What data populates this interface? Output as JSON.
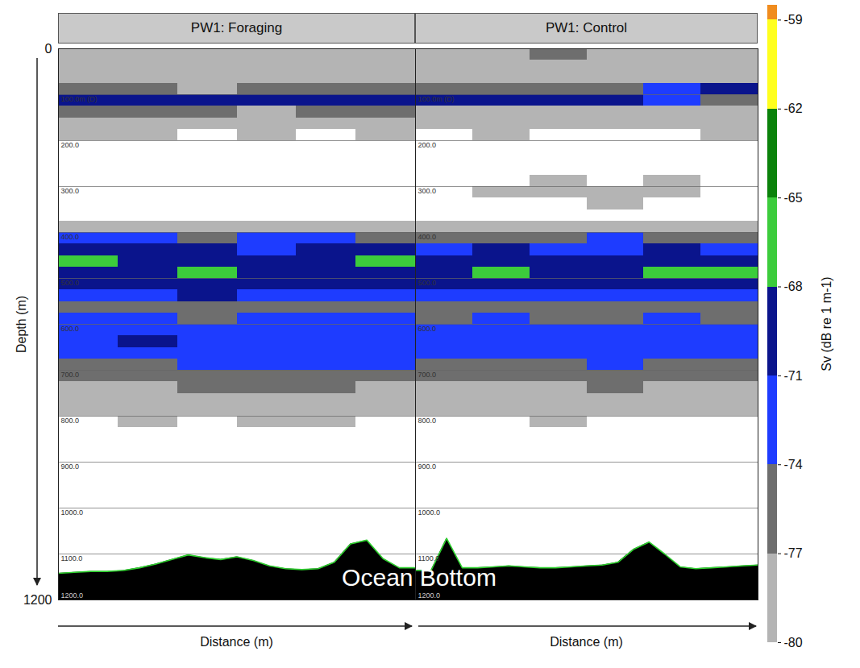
{
  "chart_data": {
    "type": "heatmap",
    "ylabel": "Depth (m)",
    "xlabel": "Distance (m)",
    "ylim": [
      0,
      1200
    ],
    "yticks": [
      0,
      1200
    ],
    "tick_labels": "y",
    "grid": true,
    "depth_lines": [
      {
        "value": 100,
        "label": "100.0m (D)"
      },
      {
        "value": 200,
        "label": "200.0"
      },
      {
        "value": 300,
        "label": "300.0"
      },
      {
        "value": 400,
        "label": "400.0"
      },
      {
        "value": 500,
        "label": "500.0"
      },
      {
        "value": 600,
        "label": "600.0"
      },
      {
        "value": 700,
        "label": "700.0"
      },
      {
        "value": 800,
        "label": "800.0"
      },
      {
        "value": 900,
        "label": "900.0"
      },
      {
        "value": 1000,
        "label": "1000.0"
      },
      {
        "value": 1100,
        "label": "1100.0"
      },
      {
        "value": 1200,
        "label": "1200.0"
      }
    ],
    "depth_bin_edges": [
      0,
      25,
      50,
      75,
      100,
      125,
      150,
      175,
      200,
      225,
      250,
      275,
      300,
      325,
      350,
      375,
      400,
      425,
      450,
      475,
      500,
      525,
      550,
      575,
      600,
      625,
      650,
      675,
      700,
      725,
      750,
      775,
      800,
      825,
      850,
      875,
      900,
      925,
      950,
      975,
      1000,
      1025,
      1050,
      1075,
      1100,
      1125,
      1150,
      1175,
      1200
    ],
    "panels": [
      {
        "title": "PW1: Foraging",
        "cells": [
          [
            -78,
            -78,
            -78,
            -78,
            -78,
            -78
          ],
          [
            -78,
            -79,
            -78,
            -78,
            -79,
            -78
          ],
          [
            -78,
            -78,
            -78,
            -78,
            -78,
            -78
          ],
          [
            -77,
            -77,
            -78,
            -77,
            -77,
            -77
          ],
          [
            -70,
            -70,
            -71,
            -70,
            -70,
            -71
          ],
          [
            -77,
            -77,
            -77,
            -78,
            -77,
            -77
          ],
          [
            -78,
            -78,
            -78,
            -78,
            -78,
            -79
          ],
          [
            -79,
            -79,
            null,
            -79,
            null,
            -79
          ],
          [
            null,
            null,
            null,
            null,
            null,
            null
          ],
          [
            null,
            null,
            null,
            null,
            null,
            null
          ],
          [
            null,
            null,
            null,
            null,
            null,
            null
          ],
          [
            null,
            null,
            null,
            null,
            null,
            null
          ],
          [
            null,
            null,
            null,
            null,
            null,
            null
          ],
          [
            null,
            null,
            null,
            null,
            null,
            null
          ],
          [
            null,
            null,
            null,
            null,
            null,
            null
          ],
          [
            -78,
            -78,
            -78,
            -78,
            -78,
            -78
          ],
          [
            -74,
            -74,
            -75,
            -74,
            -74,
            -75
          ],
          [
            -70,
            -71,
            -71,
            -72,
            -71,
            -70
          ],
          [
            -67,
            -69,
            -69,
            -70,
            -69,
            -67
          ],
          [
            -69,
            -69,
            -67,
            -69,
            -69,
            -70
          ],
          [
            -70,
            -70,
            -70,
            -69,
            -70,
            -71
          ],
          [
            -72,
            -72,
            -71,
            -72,
            -72,
            -72
          ],
          [
            -76,
            -75,
            -76,
            -75,
            -75,
            -76
          ],
          [
            -74,
            -74,
            -75,
            -74,
            -74,
            -74
          ],
          [
            -72,
            -72,
            -72,
            -73,
            -72,
            -72
          ],
          [
            -72,
            -71,
            -72,
            -72,
            -72,
            -72
          ],
          [
            -73,
            -73,
            -73,
            -73,
            -72,
            -73
          ],
          [
            -75,
            -75,
            -74,
            -74,
            -74,
            -74
          ],
          [
            -76,
            -77,
            -76,
            -76,
            -75,
            -76
          ],
          [
            -78,
            -78,
            -77,
            -77,
            -77,
            -78
          ],
          [
            -79,
            -79,
            -78,
            -78,
            -78,
            -79
          ],
          [
            -79,
            -79,
            -79,
            -79,
            -79,
            -79
          ],
          [
            null,
            -79,
            null,
            -79,
            -79,
            null
          ],
          [
            null,
            null,
            null,
            null,
            null,
            null
          ],
          [
            null,
            null,
            null,
            null,
            null,
            null
          ],
          [
            null,
            null,
            null,
            null,
            null,
            null
          ],
          [
            null,
            null,
            null,
            null,
            null,
            null
          ],
          [
            null,
            null,
            null,
            null,
            null,
            null
          ],
          [
            null,
            null,
            null,
            null,
            null,
            null
          ],
          [
            null,
            null,
            null,
            null,
            null,
            null
          ],
          [
            null,
            null,
            null,
            null,
            null,
            null
          ],
          [
            null,
            null,
            null,
            null,
            null,
            null
          ],
          [
            null,
            null,
            null,
            null,
            null,
            null
          ],
          [
            null,
            null,
            null,
            null,
            null,
            null
          ],
          [
            null,
            null,
            null,
            null,
            null,
            null
          ],
          [
            null,
            null,
            null,
            null,
            null,
            null
          ],
          [
            null,
            null,
            null,
            null,
            null,
            null
          ],
          [
            null,
            null,
            null,
            null,
            null,
            null
          ]
        ],
        "bottom_depth": [
          1142,
          1140,
          1138,
          1138,
          1136,
          1130,
          1122,
          1112,
          1102,
          1108,
          1112,
          1106,
          1114,
          1126,
          1132,
          1134,
          1132,
          1118,
          1078,
          1070,
          1110,
          1130,
          1130
        ]
      },
      {
        "title": "PW1: Control",
        "cells": [
          [
            -78,
            -78,
            -77,
            -78,
            -78,
            -78
          ],
          [
            -78,
            -78,
            -78,
            -78,
            -78,
            -78
          ],
          [
            -78,
            -79,
            -78,
            -78,
            -79,
            -78
          ],
          [
            -77,
            -77,
            -77,
            -76,
            -72,
            -71
          ],
          [
            -70,
            -70,
            -70,
            -71,
            -74,
            -75
          ],
          [
            -78,
            -78,
            -78,
            -78,
            -78,
            -78
          ],
          [
            -79,
            -79,
            -79,
            -79,
            -79,
            -79
          ],
          [
            null,
            -79,
            null,
            null,
            null,
            -79
          ],
          [
            null,
            null,
            null,
            null,
            null,
            null
          ],
          [
            null,
            null,
            null,
            null,
            null,
            null
          ],
          [
            null,
            null,
            null,
            null,
            null,
            null
          ],
          [
            null,
            null,
            -79,
            null,
            -79,
            null
          ],
          [
            null,
            -79,
            -79,
            -78,
            -79,
            null
          ],
          [
            null,
            null,
            null,
            -79,
            null,
            null
          ],
          [
            null,
            null,
            null,
            null,
            null,
            null
          ],
          [
            -78,
            -78,
            -78,
            -78,
            -78,
            -78
          ],
          [
            -75,
            -75,
            -75,
            -74,
            -75,
            -75
          ],
          [
            -72,
            -71,
            -72,
            -72,
            -71,
            -72
          ],
          [
            -70,
            -70,
            -71,
            -70,
            -71,
            -70
          ],
          [
            -69,
            -68,
            -70,
            -69,
            -68,
            -67
          ],
          [
            -70,
            -70,
            -70,
            -70,
            -69,
            -70
          ],
          [
            -73,
            -72,
            -73,
            -72,
            -73,
            -73
          ],
          [
            -76,
            -76,
            -76,
            -76,
            -75,
            -76
          ],
          [
            -75,
            -74,
            -75,
            -75,
            -74,
            -75
          ],
          [
            -73,
            -73,
            -73,
            -72,
            -72,
            -73
          ],
          [
            -72,
            -73,
            -72,
            -72,
            -72,
            -72
          ],
          [
            -73,
            -74,
            -73,
            -73,
            -73,
            -74
          ],
          [
            -75,
            -75,
            -75,
            -74,
            -75,
            -75
          ],
          [
            -77,
            -77,
            -76,
            -76,
            -76,
            -77
          ],
          [
            -78,
            -78,
            -78,
            -77,
            -78,
            -78
          ],
          [
            -79,
            -79,
            -79,
            -78,
            -79,
            -79
          ],
          [
            -79,
            -79,
            -79,
            -79,
            -79,
            -79
          ],
          [
            null,
            null,
            -79,
            null,
            null,
            null
          ],
          [
            null,
            null,
            null,
            null,
            null,
            null
          ],
          [
            null,
            null,
            null,
            null,
            null,
            null
          ],
          [
            null,
            null,
            null,
            null,
            null,
            null
          ],
          [
            null,
            null,
            null,
            null,
            null,
            null
          ],
          [
            null,
            null,
            null,
            null,
            null,
            null
          ],
          [
            null,
            null,
            null,
            null,
            null,
            null
          ],
          [
            null,
            null,
            null,
            null,
            null,
            null
          ],
          [
            null,
            null,
            null,
            null,
            null,
            null
          ],
          [
            null,
            null,
            null,
            null,
            null,
            null
          ],
          [
            null,
            null,
            null,
            null,
            null,
            null
          ],
          [
            null,
            null,
            null,
            null,
            null,
            null
          ],
          [
            null,
            null,
            null,
            null,
            null,
            null
          ],
          [
            null,
            null,
            null,
            null,
            null,
            null
          ],
          [
            null,
            null,
            null,
            null,
            null,
            null
          ],
          [
            null,
            null,
            null,
            null,
            null,
            null
          ]
        ],
        "bottom_depth": [
          1136,
          1136,
          1066,
          1130,
          1130,
          1128,
          1126,
          1128,
          1130,
          1130,
          1128,
          1126,
          1124,
          1118,
          1090,
          1074,
          1100,
          1128,
          1132,
          1130,
          1128,
          1126,
          1124
        ]
      }
    ],
    "annotations": [
      "Ocean Bottom"
    ],
    "colorbar": {
      "label": "Sv (dB re 1 m-1)",
      "range": [
        -80,
        -58.5
      ],
      "ticks": [
        -59,
        -62,
        -65,
        -68,
        -71,
        -74,
        -77,
        -80
      ],
      "bands": [
        {
          "from": -80,
          "to": -77,
          "color": "#b4b4b4"
        },
        {
          "from": -77,
          "to": -74,
          "color": "#6e6e6e"
        },
        {
          "from": -74,
          "to": -71,
          "color": "#1e3cff"
        },
        {
          "from": -71,
          "to": -68,
          "color": "#0a148c"
        },
        {
          "from": -68,
          "to": -65,
          "color": "#3ccc3c"
        },
        {
          "from": -65,
          "to": -62,
          "color": "#0a820a"
        },
        {
          "from": -62,
          "to": -59,
          "color": "#ffff1e"
        },
        {
          "from": -59,
          "to": -58.5,
          "color": "#f08c1e"
        }
      ]
    }
  }
}
